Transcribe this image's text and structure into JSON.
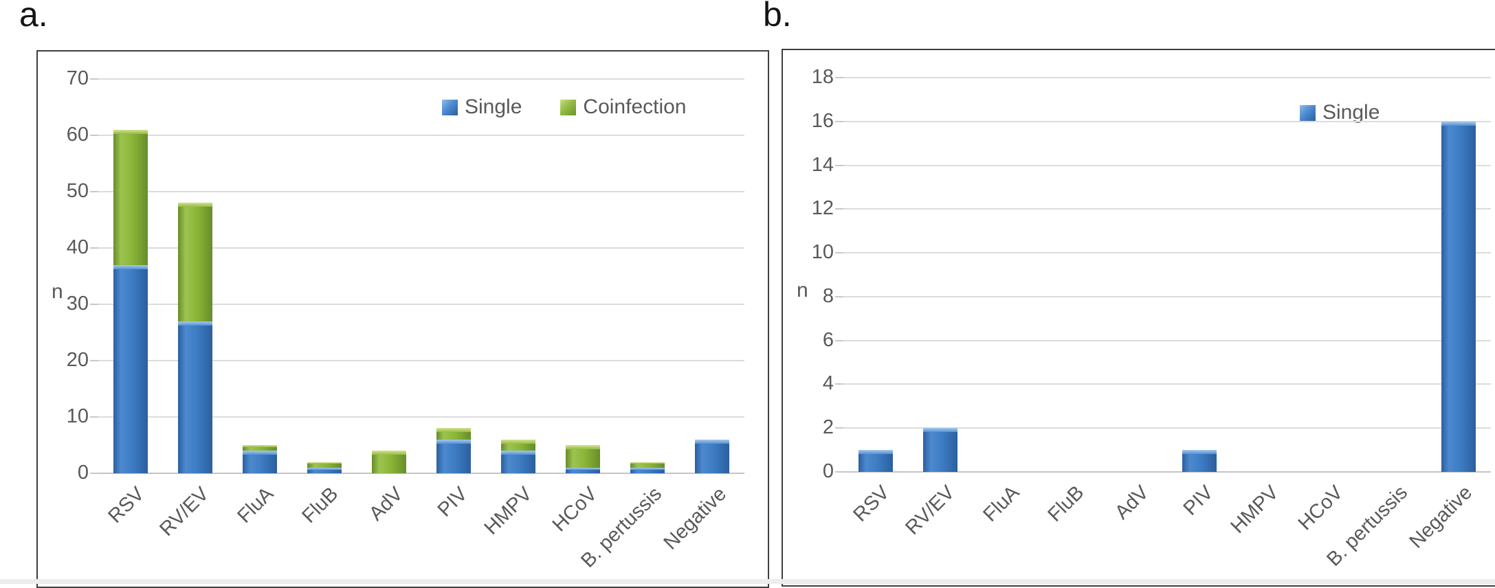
{
  "figure": {
    "panel_a_label": "a.",
    "panel_b_label": "b."
  },
  "colors": {
    "single": "#3d7cc3",
    "coinfection": "#8ab637",
    "gridline": "#dcdcdc",
    "axis_text": "#595959",
    "panel_border": "#3f3f3f"
  },
  "chart_data": [
    {
      "type": "bar",
      "stacked": true,
      "panel_label": "a.",
      "title": "",
      "xlabel": "",
      "ylabel": "n",
      "categories": [
        "RSV",
        "RV/EV",
        "FluA",
        "FluB",
        "AdV",
        "PIV",
        "HMPV",
        "HCoV",
        "B. pertussis",
        "Negative"
      ],
      "series": [
        {
          "name": "Single",
          "color_key": "single",
          "values": [
            37,
            27,
            4,
            1,
            0,
            6,
            4,
            1,
            1,
            6
          ]
        },
        {
          "name": "Coinfection",
          "color_key": "coinfection",
          "values": [
            24,
            21,
            1,
            1,
            4,
            2,
            2,
            4,
            1,
            0
          ]
        }
      ],
      "totals": [
        61,
        48,
        5,
        2,
        4,
        8,
        6,
        5,
        2,
        6
      ],
      "ylim": [
        0,
        70
      ],
      "yticks": [
        0,
        10,
        20,
        30,
        40,
        50,
        60,
        70
      ],
      "grid": true,
      "legend_position": "top-right-inside"
    },
    {
      "type": "bar",
      "stacked": false,
      "panel_label": "b.",
      "title": "",
      "xlabel": "",
      "ylabel": "n",
      "categories": [
        "RSV",
        "RV/EV",
        "FluA",
        "FluB",
        "AdV",
        "PIV",
        "HMPV",
        "HCoV",
        "B. pertussis",
        "Negative"
      ],
      "series": [
        {
          "name": "Single",
          "color_key": "single",
          "values": [
            1,
            2,
            0,
            0,
            0,
            1,
            0,
            0,
            0,
            16
          ]
        }
      ],
      "ylim": [
        0,
        18
      ],
      "yticks": [
        0,
        2,
        4,
        6,
        8,
        10,
        12,
        14,
        16,
        18
      ],
      "grid": true,
      "legend_position": "top-right-inside"
    }
  ]
}
